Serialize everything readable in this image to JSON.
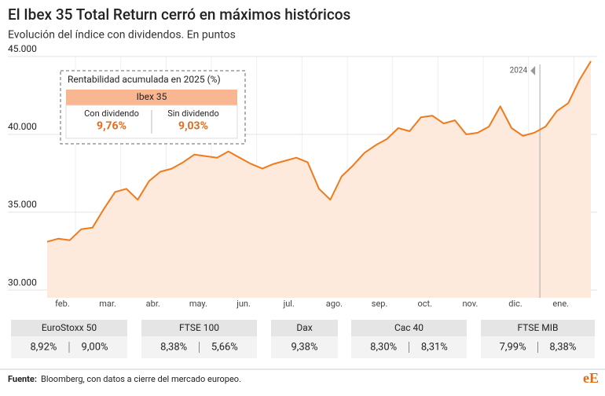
{
  "chart_data": {
    "type": "line",
    "title": "El Ibex 35 Total Return cerró en máximos históricos",
    "subtitle": "Evolución del índice con dividendos. En puntos",
    "categories": [
      null,
      "feb.",
      null,
      null,
      null,
      "mar.",
      null,
      null,
      null,
      "abr.",
      null,
      null,
      null,
      "may.",
      null,
      null,
      null,
      "jun.",
      null,
      null,
      null,
      "jul.",
      null,
      null,
      null,
      "ago.",
      null,
      null,
      null,
      "sep.",
      null,
      null,
      null,
      "oct.",
      null,
      null,
      null,
      "nov.",
      null,
      null,
      null,
      "dic.",
      null,
      null,
      null,
      "ene.",
      null,
      null,
      null
    ],
    "series": [
      {
        "name": "Ibex 35 Total Return",
        "color": "#f07a1c",
        "values": [
          33100,
          33300,
          33200,
          33900,
          34000,
          35200,
          36300,
          36500,
          35800,
          37000,
          37600,
          37800,
          38200,
          38700,
          38600,
          38500,
          38900,
          38500,
          38100,
          37800,
          38100,
          38300,
          38500,
          38200,
          36500,
          35800,
          37300,
          38000,
          38800,
          39300,
          39700,
          40400,
          40200,
          41100,
          41200,
          40700,
          40900,
          40000,
          40100,
          40500,
          41800,
          40400,
          39900,
          40100,
          40500,
          41500,
          42000,
          43500,
          44700
        ]
      }
    ],
    "fill_color": "#fdeadc",
    "ylim": [
      29500,
      45500
    ],
    "yticks": [
      {
        "value": 30000,
        "label": "30.000"
      },
      {
        "value": 35000,
        "label": "35.000"
      },
      {
        "value": 40000,
        "label": "40.000"
      },
      {
        "value": 45000,
        "label": "45.000"
      }
    ],
    "grid": true,
    "year_marker": "2024",
    "box": {
      "title": "Rentabilidad acumulada en 2025 (%)",
      "header": "Ibex 35",
      "items": [
        {
          "label": "Con dividendo",
          "value": "9,76%"
        },
        {
          "label": "Sin dividendo",
          "value": "9,03%"
        }
      ]
    }
  },
  "summary": [
    {
      "name": "EuroStoxx 50",
      "values": [
        "8,92%",
        "9,00%"
      ]
    },
    {
      "name": "FTSE 100",
      "values": [
        "8,38%",
        "5,66%"
      ]
    },
    {
      "name": "Dax",
      "values": [
        "9,38%"
      ]
    },
    {
      "name": "Cac 40",
      "values": [
        "8,30%",
        "8,31%"
      ]
    },
    {
      "name": "FTSE MIB",
      "values": [
        "7,99%",
        "8,38%"
      ]
    }
  ],
  "footer": {
    "source_label": "Fuente:",
    "source": "Bloomberg, con datos a cierre del mercado europeo.",
    "logo": "eE"
  }
}
